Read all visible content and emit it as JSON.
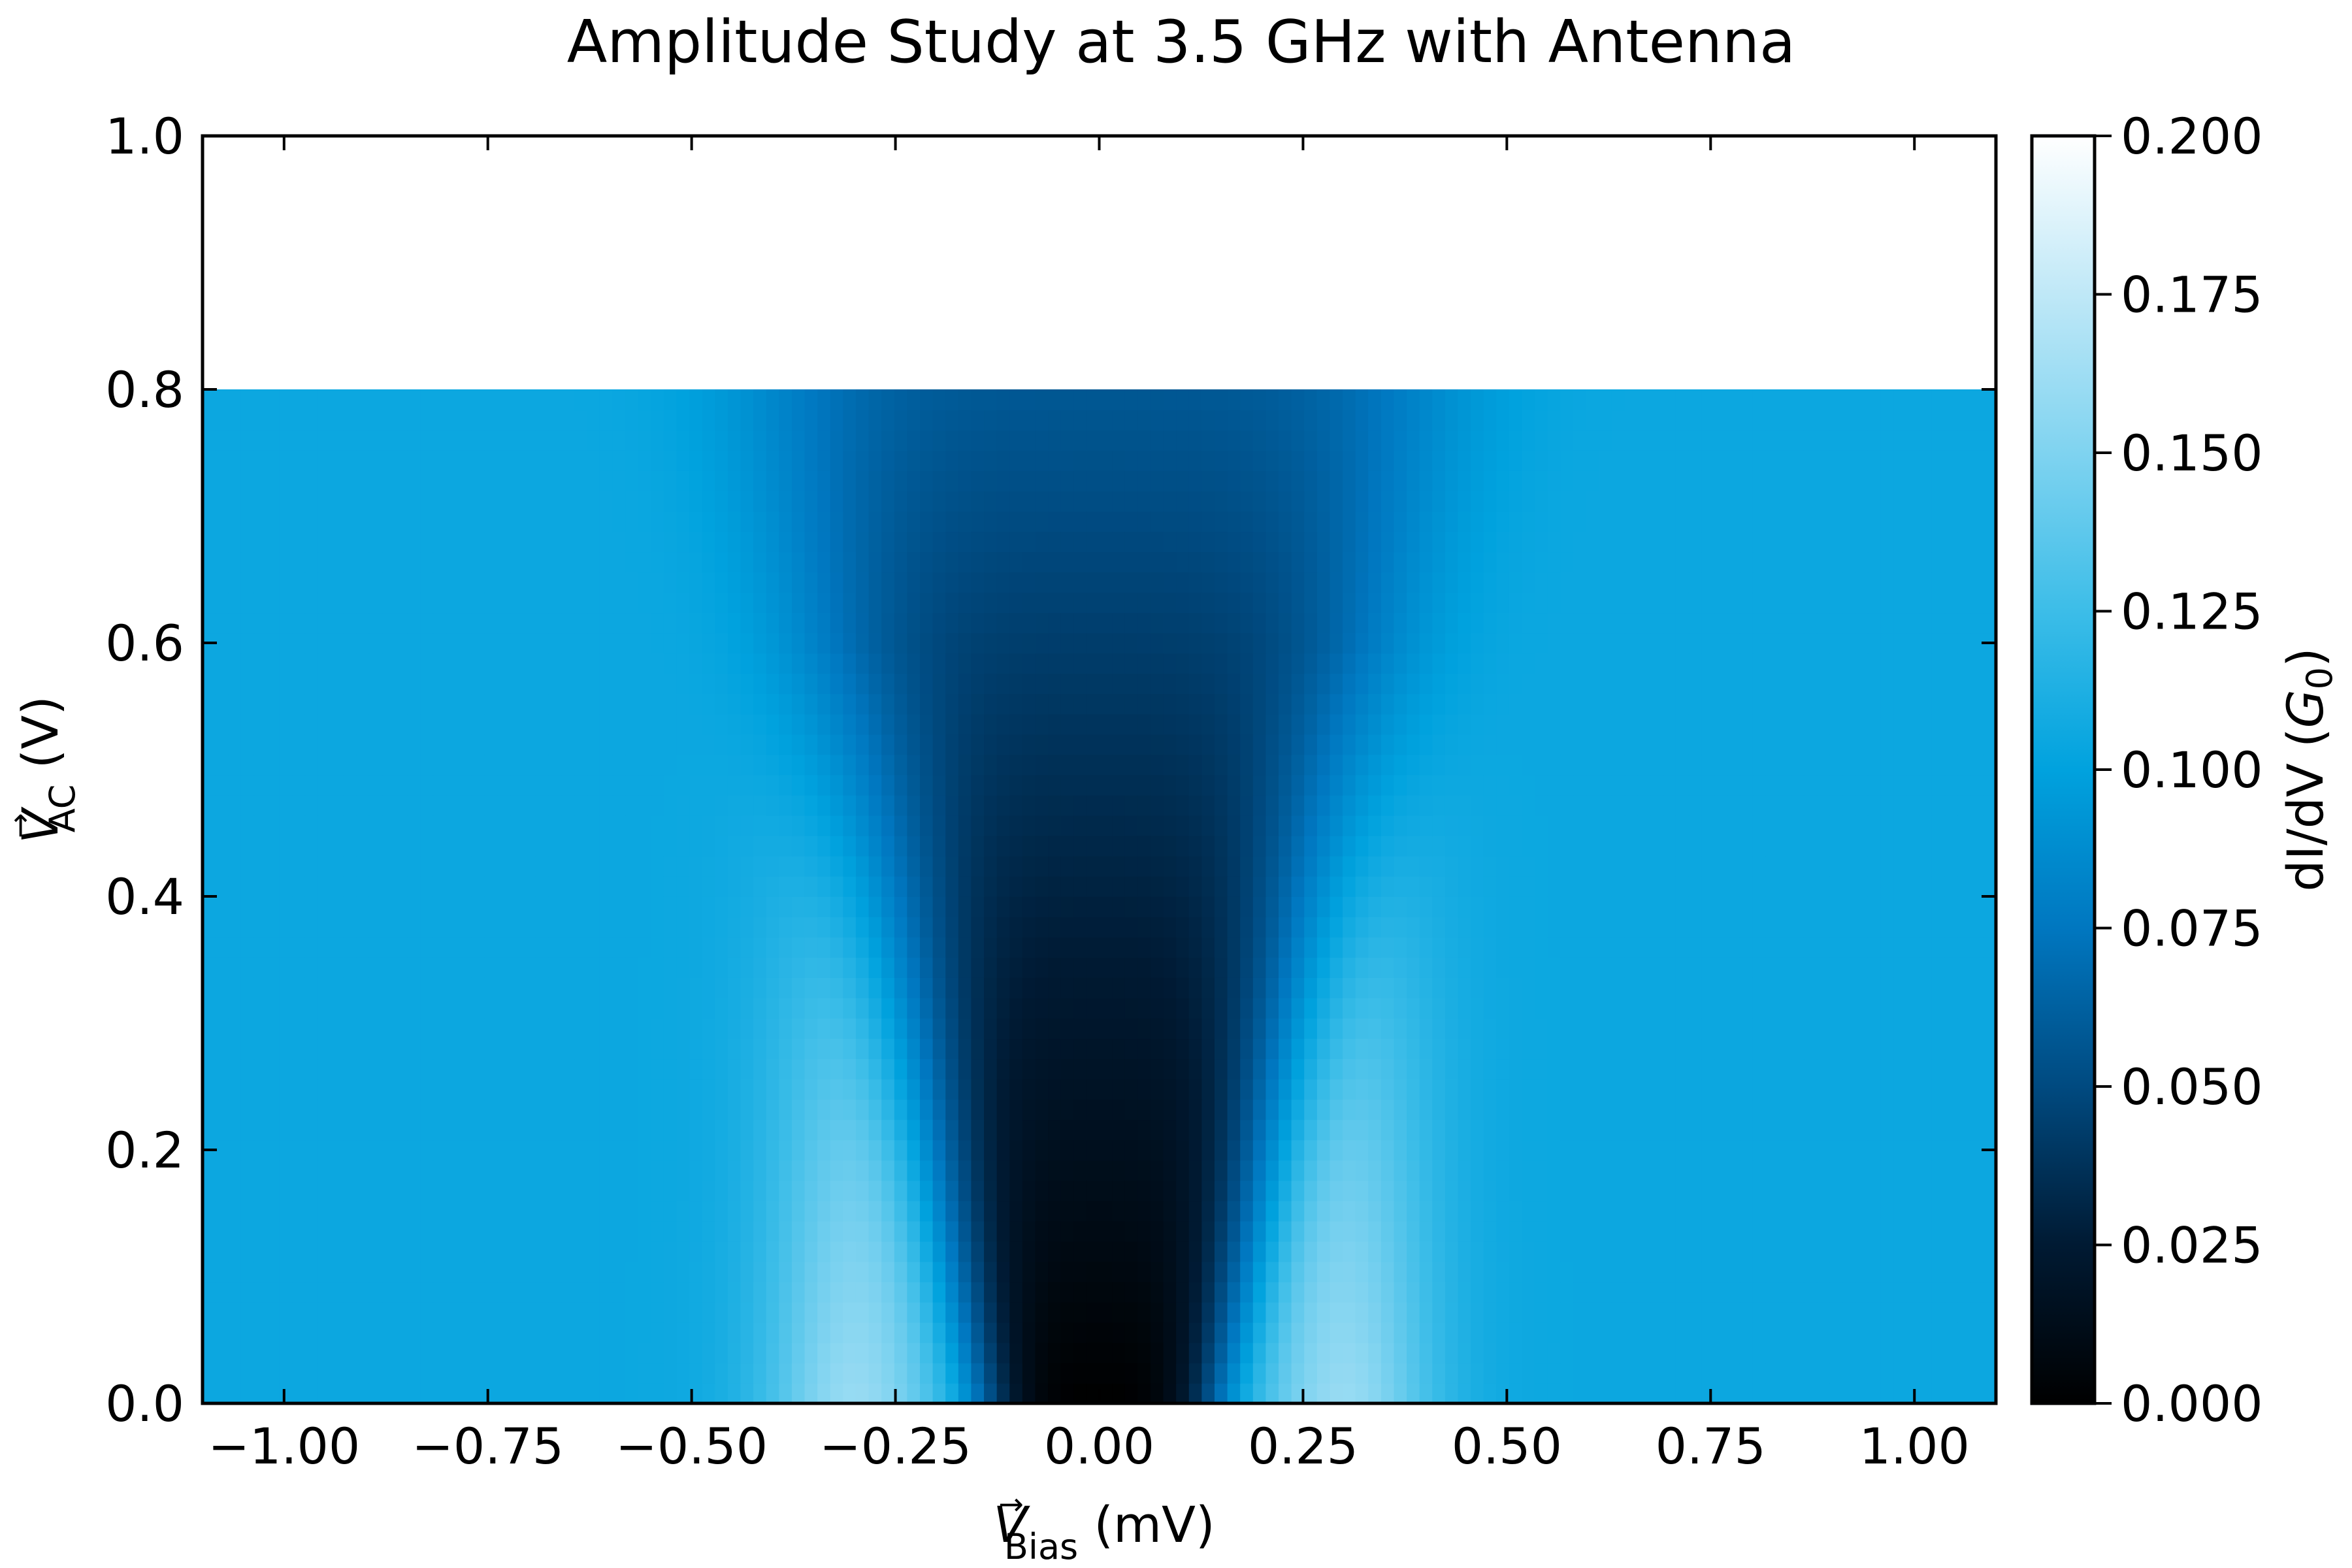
{
  "chart_data": {
    "type": "heatmap",
    "title": "Amplitude Study at 3.5 GHz with Antenna",
    "xlabel": {
      "symbol": "V",
      "arrow": "→",
      "sub": "Bias",
      "unit": " (mV)"
    },
    "ylabel": {
      "symbol": "V",
      "arrow": "→",
      "sub": "AC",
      "unit": " (V)"
    },
    "colorbar_label": {
      "pre": "dI/dV (",
      "symbol": "G",
      "sub": "0",
      "post": ")"
    },
    "colormap": [
      "#000000",
      "#001a33",
      "#004a80",
      "#0077c0",
      "#00a2de",
      "#3cbde8",
      "#7fd3f0",
      "#bfe8f7",
      "#ffffff"
    ],
    "xlim": [
      -1.1,
      1.1
    ],
    "ylim": [
      0.0,
      1.0
    ],
    "data_extent": {
      "x": [
        -1.1,
        1.1
      ],
      "y": [
        0.0,
        0.8
      ]
    },
    "clim": [
      0.0,
      0.2
    ],
    "xticks": [
      -1.0,
      -0.75,
      -0.5,
      -0.25,
      0.0,
      0.25,
      0.5,
      0.75,
      1.0
    ],
    "xtick_labels": [
      "−1.00",
      "−0.75",
      "−0.50",
      "−0.25",
      "0.00",
      "0.25",
      "0.50",
      "0.75",
      "1.00"
    ],
    "yticks": [
      0.0,
      0.2,
      0.4,
      0.6,
      0.8,
      1.0
    ],
    "ytick_labels": [
      "0.0",
      "0.2",
      "0.4",
      "0.6",
      "0.8",
      "1.0"
    ],
    "cticks": [
      0.0,
      0.025,
      0.05,
      0.075,
      0.1,
      0.125,
      0.15,
      0.175,
      0.2
    ],
    "ctick_labels": [
      "0.000",
      "0.025",
      "0.050",
      "0.075",
      "0.100",
      "0.125",
      "0.150",
      "0.175",
      "0.200"
    ],
    "features": {
      "background_dIdV": 0.105,
      "gap_center_mV": 0.0,
      "gap_min_dIdV": 0.0,
      "gap_halfwidth_mV_at_0V": 0.15,
      "gap_halfwidth_mV_at_0.8V": 0.42,
      "coherence_peaks_mV": [
        -0.3,
        0.3
      ],
      "coherence_peak_dIdV": 0.16,
      "coherence_peak_fades_by_VAC": 0.6
    }
  }
}
